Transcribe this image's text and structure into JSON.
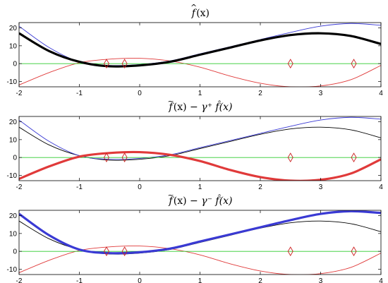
{
  "chart_data": [
    {
      "type": "line",
      "title": {
        "func": "f",
        "accent": "^",
        "arg": "(x)",
        "rest": ""
      },
      "xlim": [
        -2,
        4
      ],
      "ylim": [
        -13,
        23
      ],
      "xticks": [
        "-2",
        "-1",
        "0",
        "1",
        "2",
        "3",
        "4"
      ],
      "yticks": [
        "20",
        "10",
        "0",
        "-10"
      ],
      "highlight": "fhat",
      "series": [
        {
          "key": "fhat",
          "color": "#000000",
          "x": [
            -2,
            -1.5,
            -1,
            -0.5,
            0,
            0.5,
            1,
            1.5,
            2,
            2.5,
            3,
            3.5,
            4
          ],
          "y": [
            17,
            7,
            1,
            -1.5,
            -1,
            1,
            5,
            9,
            13,
            16,
            17,
            15.5,
            11
          ]
        },
        {
          "key": "lower",
          "color": "#e03a3a",
          "x": [
            -2,
            -1.5,
            -1,
            -0.5,
            0,
            0.5,
            1,
            1.5,
            2,
            2.5,
            3,
            3.5,
            4
          ],
          "y": [
            -12,
            -5,
            0.5,
            2.5,
            3,
            1.5,
            -2,
            -7,
            -11,
            -13,
            -12.5,
            -9,
            -1
          ]
        },
        {
          "key": "upper",
          "color": "#3a3ad4",
          "x": [
            -2,
            -1.5,
            -1,
            -0.5,
            0,
            0.5,
            1,
            1.5,
            2,
            2.5,
            3,
            3.5,
            4
          ],
          "y": [
            21,
            9,
            1,
            -1,
            -0.5,
            1.5,
            5.5,
            9.5,
            13.5,
            17.5,
            21,
            22.5,
            21.5
          ]
        },
        {
          "key": "zero",
          "color": "#2ecc2e",
          "x": [
            -2,
            4
          ],
          "y": [
            0,
            0
          ]
        }
      ],
      "markers": {
        "color": "#cc2222",
        "x": [
          -0.55,
          -0.25,
          2.5,
          3.55
        ],
        "y": [
          0,
          0,
          0,
          0
        ]
      }
    },
    {
      "type": "line",
      "title": {
        "func": "f",
        "accent": "~",
        "arg": "(x)",
        "rest": " − γ⁺ f̂(x)"
      },
      "xlim": [
        -2,
        4
      ],
      "ylim": [
        -13,
        23
      ],
      "xticks": [
        "-2",
        "-1",
        "0",
        "1",
        "2",
        "3",
        "4"
      ],
      "yticks": [
        "20",
        "10",
        "0",
        "-10"
      ],
      "highlight": "lower",
      "series": [
        {
          "key": "fhat",
          "color": "#000000",
          "x": [
            -2,
            -1.5,
            -1,
            -0.5,
            0,
            0.5,
            1,
            1.5,
            2,
            2.5,
            3,
            3.5,
            4
          ],
          "y": [
            17,
            7,
            1,
            -1.5,
            -1,
            1,
            5,
            9,
            13,
            16,
            17,
            15.5,
            11
          ]
        },
        {
          "key": "lower",
          "color": "#e03a3a",
          "x": [
            -2,
            -1.5,
            -1,
            -0.5,
            0,
            0.5,
            1,
            1.5,
            2,
            2.5,
            3,
            3.5,
            4
          ],
          "y": [
            -12,
            -5,
            0.5,
            2.5,
            3,
            1.5,
            -2,
            -7,
            -11,
            -13,
            -12.5,
            -9,
            -1
          ]
        },
        {
          "key": "upper",
          "color": "#3a3ad4",
          "x": [
            -2,
            -1.5,
            -1,
            -0.5,
            0,
            0.5,
            1,
            1.5,
            2,
            2.5,
            3,
            3.5,
            4
          ],
          "y": [
            21,
            9,
            1,
            -1,
            -0.5,
            1.5,
            5.5,
            9.5,
            13.5,
            17.5,
            21,
            22.5,
            21.5
          ]
        },
        {
          "key": "zero",
          "color": "#2ecc2e",
          "x": [
            -2,
            4
          ],
          "y": [
            0,
            0
          ]
        }
      ],
      "markers": {
        "color": "#cc2222",
        "x": [
          -0.55,
          -0.25,
          2.5,
          3.55
        ],
        "y": [
          0,
          0,
          0,
          0
        ]
      }
    },
    {
      "type": "line",
      "title": {
        "func": "f",
        "accent": "~",
        "arg": "(x)",
        "rest": " − γ⁻ f̂(x)"
      },
      "xlim": [
        -2,
        4
      ],
      "ylim": [
        -13,
        23
      ],
      "xticks": [
        "-2",
        "-1",
        "0",
        "1",
        "2",
        "3",
        "4"
      ],
      "yticks": [
        "20",
        "10",
        "0",
        "-10"
      ],
      "highlight": "upper",
      "series": [
        {
          "key": "fhat",
          "color": "#000000",
          "x": [
            -2,
            -1.5,
            -1,
            -0.5,
            0,
            0.5,
            1,
            1.5,
            2,
            2.5,
            3,
            3.5,
            4
          ],
          "y": [
            17,
            7,
            1,
            -1.5,
            -1,
            1,
            5,
            9,
            13,
            16,
            17,
            15.5,
            11
          ]
        },
        {
          "key": "lower",
          "color": "#e03a3a",
          "x": [
            -2,
            -1.5,
            -1,
            -0.5,
            0,
            0.5,
            1,
            1.5,
            2,
            2.5,
            3,
            3.5,
            4
          ],
          "y": [
            -12,
            -5,
            0.5,
            2.5,
            3,
            1.5,
            -2,
            -7,
            -11,
            -13,
            -12.5,
            -9,
            -1
          ]
        },
        {
          "key": "upper",
          "color": "#3a3ad4",
          "x": [
            -2,
            -1.5,
            -1,
            -0.5,
            0,
            0.5,
            1,
            1.5,
            2,
            2.5,
            3,
            3.5,
            4
          ],
          "y": [
            21,
            9,
            1,
            -1,
            -0.5,
            1.5,
            5.5,
            9.5,
            13.5,
            17.5,
            21,
            22.5,
            21.5
          ]
        },
        {
          "key": "zero",
          "color": "#2ecc2e",
          "x": [
            -2,
            4
          ],
          "y": [
            0,
            0
          ]
        }
      ],
      "markers": {
        "color": "#cc2222",
        "x": [
          -0.55,
          -0.25,
          2.5,
          3.55
        ],
        "y": [
          0,
          0,
          0,
          0
        ]
      }
    }
  ]
}
